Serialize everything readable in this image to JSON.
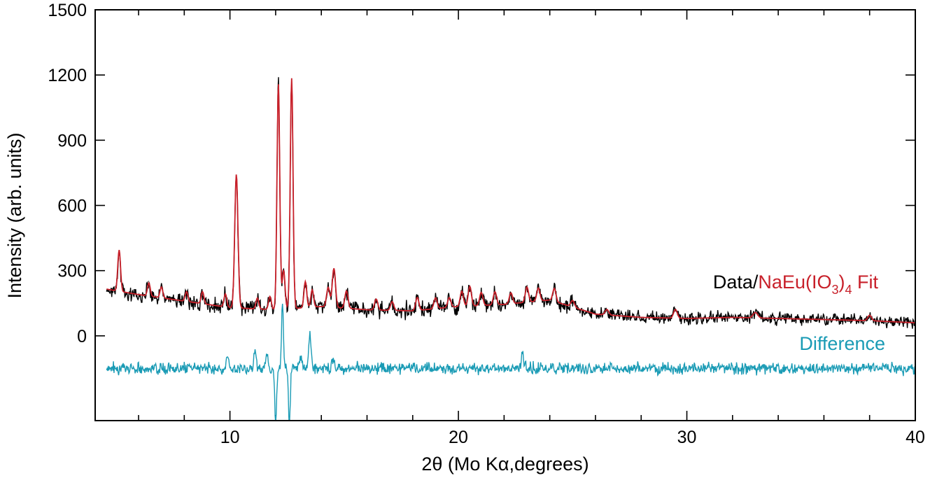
{
  "chart_data": {
    "type": "line",
    "xlabel": "2θ (Mo Kα,degrees)",
    "ylabel": "Intensity (arb. units)",
    "xlim": [
      4.1,
      40
    ],
    "ylim": [
      -390,
      1500
    ],
    "x_ticks": [
      10,
      20,
      30,
      40
    ],
    "x_tick_labels": [
      "10",
      "20",
      "30",
      "40"
    ],
    "x_minor_step": 2,
    "y_ticks": [
      0,
      300,
      600,
      900,
      1200,
      1500
    ],
    "y_tick_labels": [
      "0",
      "300",
      "600",
      "900",
      "1200",
      "1500"
    ],
    "grid": false,
    "legend": {
      "placement": "right",
      "data_label": "Data/",
      "fit_label_main": "NaEu(IO",
      "fit_sub_1": "3",
      "fit_label_mid": ")",
      "fit_sub_2": "4",
      "fit_label_end": " Fit",
      "difference_label": "Difference"
    },
    "colors": {
      "data": "#000000",
      "fit": "#c8202a",
      "difference": "#1a9bb5"
    },
    "background": {
      "x": [
        4.6,
        6,
        8,
        10,
        12,
        14,
        16,
        18,
        20,
        22,
        24,
        26,
        28,
        30,
        32,
        34,
        36,
        38,
        40
      ],
      "y": [
        215,
        190,
        160,
        130,
        120,
        135,
        120,
        115,
        135,
        145,
        165,
        100,
        85,
        80,
        85,
        80,
        75,
        70,
        60
      ]
    },
    "peaks": [
      {
        "x": 5.15,
        "h": 190,
        "w": 0.06
      },
      {
        "x": 6.45,
        "h": 60,
        "w": 0.06
      },
      {
        "x": 7.0,
        "h": 50,
        "w": 0.06
      },
      {
        "x": 8.1,
        "h": 45,
        "w": 0.06
      },
      {
        "x": 8.8,
        "h": 55,
        "w": 0.06
      },
      {
        "x": 9.8,
        "h": 60,
        "w": 0.06
      },
      {
        "x": 10.28,
        "h": 615,
        "w": 0.07
      },
      {
        "x": 11.2,
        "h": 50,
        "w": 0.06
      },
      {
        "x": 11.75,
        "h": 60,
        "w": 0.06
      },
      {
        "x": 12.12,
        "h": 1040,
        "w": 0.06
      },
      {
        "x": 12.7,
        "h": 1060,
        "w": 0.06
      },
      {
        "x": 12.35,
        "h": 180,
        "w": 0.06
      },
      {
        "x": 13.3,
        "h": 120,
        "w": 0.06
      },
      {
        "x": 13.6,
        "h": 80,
        "w": 0.06
      },
      {
        "x": 14.3,
        "h": 90,
        "w": 0.07
      },
      {
        "x": 14.55,
        "h": 180,
        "w": 0.07
      },
      {
        "x": 15.1,
        "h": 80,
        "w": 0.07
      },
      {
        "x": 16.4,
        "h": 50,
        "w": 0.07
      },
      {
        "x": 17.1,
        "h": 40,
        "w": 0.07
      },
      {
        "x": 18.2,
        "h": 60,
        "w": 0.07
      },
      {
        "x": 19.0,
        "h": 50,
        "w": 0.07
      },
      {
        "x": 19.6,
        "h": 45,
        "w": 0.07
      },
      {
        "x": 20.15,
        "h": 70,
        "w": 0.07
      },
      {
        "x": 20.5,
        "h": 90,
        "w": 0.07
      },
      {
        "x": 21.0,
        "h": 60,
        "w": 0.07
      },
      {
        "x": 21.6,
        "h": 60,
        "w": 0.07
      },
      {
        "x": 22.3,
        "h": 50,
        "w": 0.07
      },
      {
        "x": 23.0,
        "h": 70,
        "w": 0.07
      },
      {
        "x": 23.5,
        "h": 60,
        "w": 0.07
      },
      {
        "x": 24.2,
        "h": 60,
        "w": 0.07
      },
      {
        "x": 25.0,
        "h": 30,
        "w": 0.08
      },
      {
        "x": 26.5,
        "h": 25,
        "w": 0.08
      },
      {
        "x": 29.5,
        "h": 40,
        "w": 0.08
      },
      {
        "x": 33.0,
        "h": 25,
        "w": 0.1
      },
      {
        "x": 38.0,
        "h": 25,
        "w": 0.08
      }
    ],
    "difference_offset": -150,
    "difference_features": [
      {
        "x": 9.9,
        "h": 60,
        "w": 0.05
      },
      {
        "x": 11.1,
        "h": 80,
        "w": 0.05
      },
      {
        "x": 11.6,
        "h": 70,
        "w": 0.05
      },
      {
        "x": 12.0,
        "h": -250,
        "w": 0.04
      },
      {
        "x": 12.3,
        "h": 300,
        "w": 0.04
      },
      {
        "x": 12.6,
        "h": -270,
        "w": 0.04
      },
      {
        "x": 13.5,
        "h": 160,
        "w": 0.05
      },
      {
        "x": 13.1,
        "h": 60,
        "w": 0.05
      },
      {
        "x": 22.8,
        "h": 60,
        "w": 0.06
      },
      {
        "x": 14.5,
        "h": 40,
        "w": 0.05
      }
    ],
    "noise": {
      "step": 0.025,
      "data_amplitude": 35,
      "difference_amplitude": 26,
      "seed": 7
    }
  }
}
